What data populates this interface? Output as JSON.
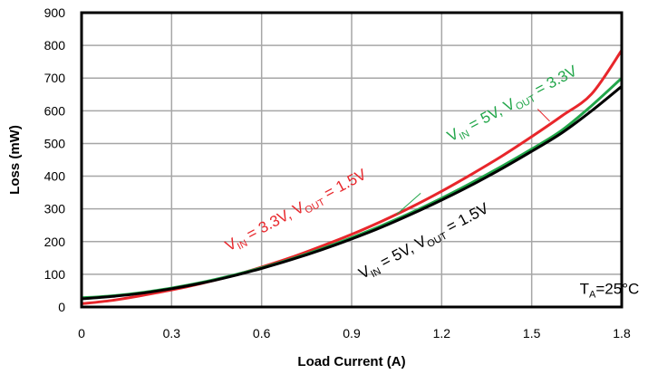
{
  "chart_data": {
    "type": "line",
    "title": "",
    "xlabel": "Load Current (A)",
    "ylabel": "Loss (mW)",
    "xlim": [
      0,
      1.8
    ],
    "ylim": [
      0,
      900
    ],
    "xticks": [
      "0",
      "0.3",
      "0.6",
      "0.9",
      "1.2",
      "1.5",
      "1.8"
    ],
    "yticks": [
      "0",
      "100",
      "200",
      "300",
      "400",
      "500",
      "600",
      "700",
      "800",
      "900"
    ],
    "grid": true,
    "legend": "none",
    "series": [
      {
        "color": "#e8262b",
        "x": [
          0,
          0.1,
          0.2,
          0.3,
          0.4,
          0.5,
          0.6,
          0.7,
          0.8,
          0.9,
          1.0,
          1.1,
          1.2,
          1.3,
          1.4,
          1.5,
          1.6,
          1.7,
          1.8
        ],
        "y": [
          10,
          20,
          35,
          52,
          72,
          95,
          122,
          152,
          186,
          222,
          262,
          306,
          354,
          406,
          461,
          521,
          584,
          652,
          785
        ]
      },
      {
        "color": "#22a64a",
        "x": [
          0,
          0.1,
          0.2,
          0.3,
          0.4,
          0.5,
          0.6,
          0.7,
          0.8,
          0.9,
          1.0,
          1.1,
          1.2,
          1.3,
          1.4,
          1.5,
          1.6,
          1.7,
          1.8
        ],
        "y": [
          28,
          34,
          44,
          58,
          75,
          96,
          120,
          147,
          178,
          212,
          249,
          289,
          333,
          380,
          430,
          483,
          540,
          616,
          700
        ]
      },
      {
        "color": "#000000",
        "x": [
          0,
          0.1,
          0.2,
          0.3,
          0.4,
          0.5,
          0.6,
          0.7,
          0.8,
          0.9,
          1.0,
          1.1,
          1.2,
          1.3,
          1.4,
          1.5,
          1.6,
          1.7,
          1.8
        ],
        "y": [
          25,
          32,
          42,
          56,
          73,
          94,
          118,
          145,
          175,
          208,
          244,
          284,
          327,
          373,
          423,
          476,
          532,
          600,
          675
        ]
      }
    ],
    "annotations": [
      {
        "parts": [
          [
            "V",
            ""
          ],
          [
            "IN",
            "sub"
          ],
          [
            " = 3.3V, V",
            ""
          ],
          [
            "OUT",
            "sub"
          ],
          [
            " = 1.5V",
            ""
          ]
        ],
        "color": "#e8262b",
        "x": 0.49,
        "y": 170,
        "angle": -28
      },
      {
        "parts": [
          [
            "V",
            ""
          ],
          [
            "IN",
            "sub"
          ],
          [
            " = 5V, V",
            ""
          ],
          [
            "OUT",
            "sub"
          ],
          [
            " = 3.3V",
            ""
          ]
        ],
        "color": "#22a64a",
        "x": 1.23,
        "y": 505,
        "angle": -28
      },
      {
        "parts": [
          [
            "V",
            ""
          ],
          [
            "IN",
            "sub"
          ],
          [
            " = 5V, V",
            ""
          ],
          [
            "OUT",
            "sub"
          ],
          [
            " = 1.5V",
            ""
          ]
        ],
        "color": "#000000",
        "x": 0.935,
        "y": 85,
        "angle": -28
      },
      {
        "parts": [
          [
            "T",
            ""
          ],
          [
            "A",
            "sub"
          ],
          [
            "=25°C",
            ""
          ]
        ],
        "color": "#000000",
        "x": 1.66,
        "y": 40,
        "angle": 0
      }
    ],
    "pointers": [
      {
        "from": [
          1.13,
          348
        ],
        "to": [
          1.05,
          283
        ],
        "color": "#22a64a"
      },
      {
        "from": [
          1.56,
          568
        ],
        "to": [
          1.52,
          605
        ],
        "color": "#e8262b"
      }
    ]
  }
}
